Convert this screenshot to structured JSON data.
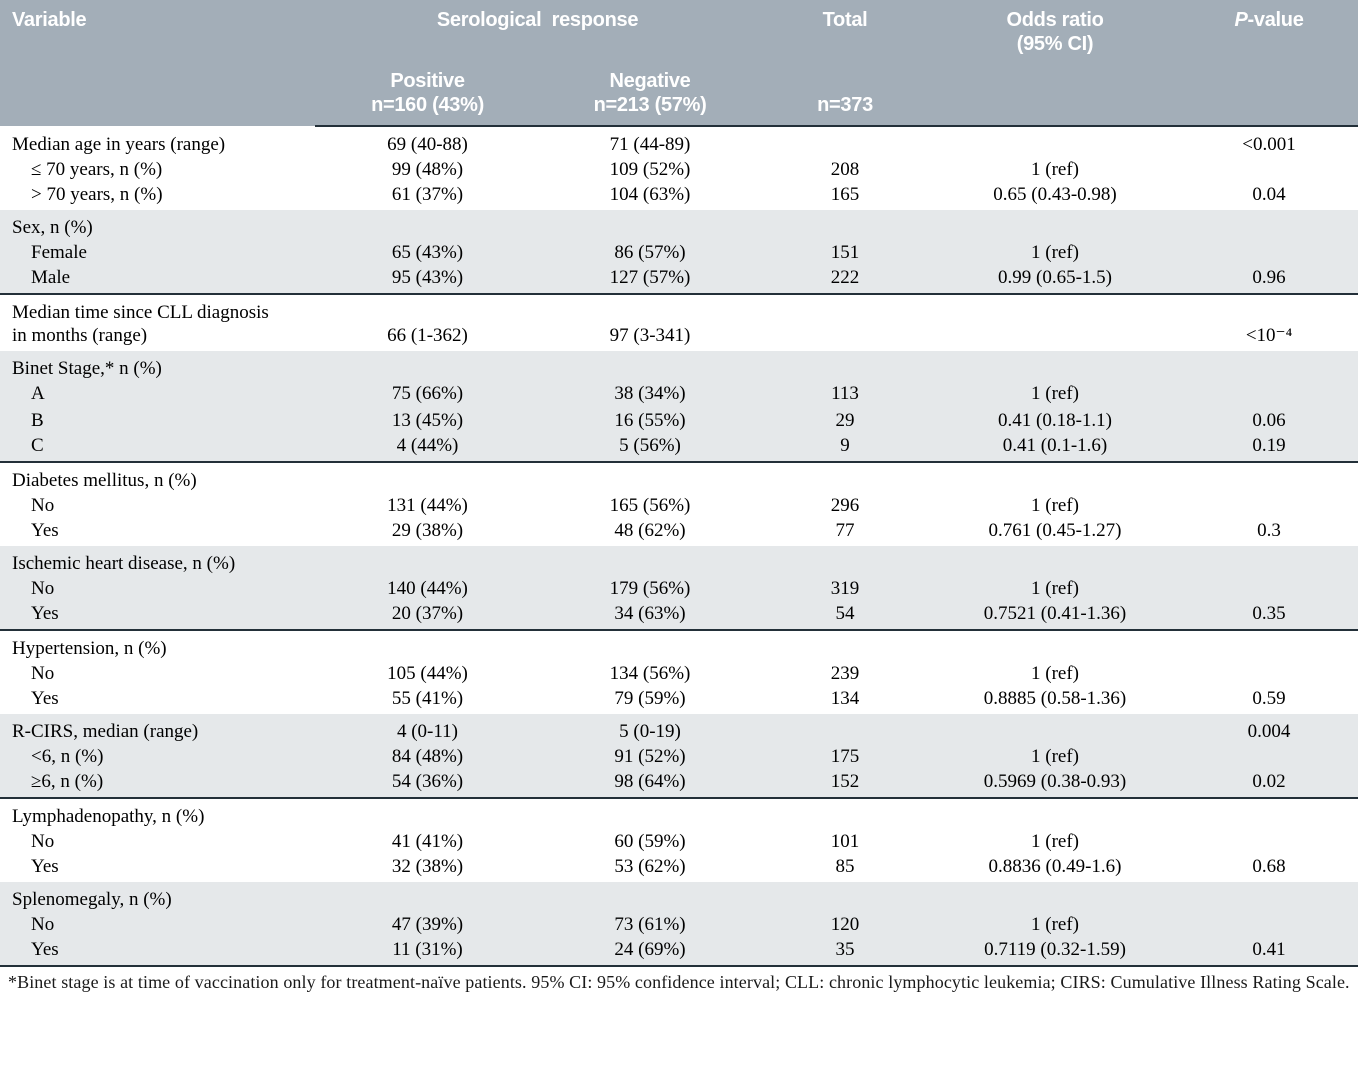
{
  "header": {
    "variable": "Variable",
    "serological": "Serological response",
    "total": "Total",
    "odds_line1": "Odds ratio",
    "odds_line2": "(95% CI)",
    "p_italic": "P",
    "p_rest": "-value",
    "positive_label": "Positive",
    "positive_n": "n=160 (43%)",
    "negative_label": "Negative",
    "negative_n": "n=213 (57%)",
    "total_n": "n=373"
  },
  "columns": [
    "Variable",
    "Positive",
    "Negative",
    "Total",
    "Odds ratio (95% CI)",
    "P-value"
  ],
  "colors": {
    "header_bg": "#a3aeb8",
    "header_text": "#ffffff",
    "stripe_bg": "#e5e8ea",
    "divider": "#233039"
  },
  "groups": [
    {
      "shaded": false,
      "rows": [
        {
          "label": "Median age in years (range)",
          "indent": false,
          "positive": "69 (40-88)",
          "negative": "71 (44-89)",
          "total": "",
          "odds": "",
          "p": "<0.001"
        },
        {
          "label": "≤ 70 years, n (%)",
          "indent": true,
          "positive": "99 (48%)",
          "negative": "109 (52%)",
          "total": "208",
          "odds": "1 (ref)",
          "p": ""
        },
        {
          "label": "> 70 years, n (%)",
          "indent": true,
          "positive": "61 (37%)",
          "negative": "104 (63%)",
          "total": "165",
          "odds": "0.65 (0.43-0.98)",
          "p": "0.04"
        }
      ]
    },
    {
      "shaded": true,
      "rows": [
        {
          "label": "Sex, n (%)",
          "indent": false,
          "positive": "",
          "negative": "",
          "total": "",
          "odds": "",
          "p": ""
        },
        {
          "label": "Female",
          "indent": true,
          "positive": "65 (43%)",
          "negative": "86 (57%)",
          "total": "151",
          "odds": "1 (ref)",
          "p": ""
        },
        {
          "label": "Male",
          "indent": true,
          "positive": "95 (43%)",
          "negative": "127 (57%)",
          "total": "222",
          "odds": "0.99 (0.65-1.5)",
          "p": "0.96"
        }
      ]
    },
    {
      "shaded": false,
      "rows": [
        {
          "label": "Median time since CLL diagnosis",
          "indent": false,
          "positive": "",
          "negative": "",
          "total": "",
          "odds": "",
          "p": ""
        },
        {
          "label": "in months (range)",
          "indent": false,
          "positive": "66 (1-362)",
          "negative": "97 (3-341)",
          "total": "",
          "odds": "",
          "p": "<10⁻⁴"
        }
      ]
    },
    {
      "shaded": true,
      "rows": [
        {
          "label": "Binet Stage,* n (%)",
          "indent": false,
          "positive": "",
          "negative": "",
          "total": "",
          "odds": "",
          "p": ""
        },
        {
          "label": "A",
          "indent": true,
          "positive": "75 (66%)",
          "negative": "38 (34%)",
          "total": "113",
          "odds": "1 (ref)",
          "p": ""
        },
        {
          "label": "B",
          "indent": true,
          "positive": "13 (45%)",
          "negative": "16 (55%)",
          "total": "29",
          "odds": "0.41 (0.18-1.1)",
          "p": "0.06"
        },
        {
          "label": "C",
          "indent": true,
          "positive": "4 (44%)",
          "negative": "5 (56%)",
          "total": "9",
          "odds": "0.41 (0.1-1.6)",
          "p": "0.19"
        }
      ]
    },
    {
      "shaded": false,
      "rows": [
        {
          "label": "Diabetes mellitus, n (%)",
          "indent": false,
          "positive": "",
          "negative": "",
          "total": "",
          "odds": "",
          "p": ""
        },
        {
          "label": "No",
          "indent": true,
          "positive": "131 (44%)",
          "negative": "165 (56%)",
          "total": "296",
          "odds": "1 (ref)",
          "p": ""
        },
        {
          "label": "Yes",
          "indent": true,
          "positive": "29 (38%)",
          "negative": "48 (62%)",
          "total": "77",
          "odds": "0.761 (0.45-1.27)",
          "p": "0.3"
        }
      ]
    },
    {
      "shaded": true,
      "rows": [
        {
          "label": "Ischemic heart disease, n (%)",
          "indent": false,
          "positive": "",
          "negative": "",
          "total": "",
          "odds": "",
          "p": ""
        },
        {
          "label": "No",
          "indent": true,
          "positive": "140 (44%)",
          "negative": "179 (56%)",
          "total": "319",
          "odds": "1 (ref)",
          "p": ""
        },
        {
          "label": "Yes",
          "indent": true,
          "positive": "20 (37%)",
          "negative": "34 (63%)",
          "total": "54",
          "odds": "0.7521 (0.41-1.36)",
          "p": "0.35"
        }
      ]
    },
    {
      "shaded": false,
      "rows": [
        {
          "label": "Hypertension, n (%)",
          "indent": false,
          "positive": "",
          "negative": "",
          "total": "",
          "odds": "",
          "p": ""
        },
        {
          "label": "No",
          "indent": true,
          "positive": "105 (44%)",
          "negative": "134 (56%)",
          "total": "239",
          "odds": "1 (ref)",
          "p": ""
        },
        {
          "label": "Yes",
          "indent": true,
          "positive": "55 (41%)",
          "negative": "79 (59%)",
          "total": "134",
          "odds": "0.8885 (0.58-1.36)",
          "p": "0.59"
        }
      ]
    },
    {
      "shaded": true,
      "rows": [
        {
          "label": "R-CIRS, median (range)",
          "indent": false,
          "positive": "4 (0-11)",
          "negative": "5 (0-19)",
          "total": "",
          "odds": "",
          "p": "0.004"
        },
        {
          "label": "<6, n (%)",
          "indent": true,
          "positive": "84 (48%)",
          "negative": "91 (52%)",
          "total": "175",
          "odds": "1 (ref)",
          "p": ""
        },
        {
          "label": "≥6, n (%)",
          "indent": true,
          "positive": "54 (36%)",
          "negative": "98 (64%)",
          "total": "152",
          "odds": "0.5969 (0.38-0.93)",
          "p": "0.02"
        }
      ]
    },
    {
      "shaded": false,
      "rows": [
        {
          "label": "Lymphadenopathy, n (%)",
          "indent": false,
          "positive": "",
          "negative": "",
          "total": "",
          "odds": "",
          "p": ""
        },
        {
          "label": "No",
          "indent": true,
          "positive": "41 (41%)",
          "negative": "60 (59%)",
          "total": "101",
          "odds": "1 (ref)",
          "p": ""
        },
        {
          "label": "Yes",
          "indent": true,
          "positive": "32 (38%)",
          "negative": "53 (62%)",
          "total": "85",
          "odds": "0.8836 (0.49-1.6)",
          "p": "0.68"
        }
      ]
    },
    {
      "shaded": true,
      "rows": [
        {
          "label": "Splenomegaly, n (%)",
          "indent": false,
          "positive": "",
          "negative": "",
          "total": "",
          "odds": "",
          "p": ""
        },
        {
          "label": "No",
          "indent": true,
          "positive": "47 (39%)",
          "negative": "73 (61%)",
          "total": "120",
          "odds": "1 (ref)",
          "p": ""
        },
        {
          "label": "Yes",
          "indent": true,
          "positive": "11 (31%)",
          "negative": "24 (69%)",
          "total": "35",
          "odds": "0.7119 (0.32-1.59)",
          "p": "0.41"
        }
      ]
    }
  ],
  "footnote": "*Binet stage is at time of vaccination only for treatment-naïve patients. 95% CI: 95% confidence interval; CLL: chronic lymphocytic leukemia; CIRS: Cumulative Illness Rating Scale."
}
